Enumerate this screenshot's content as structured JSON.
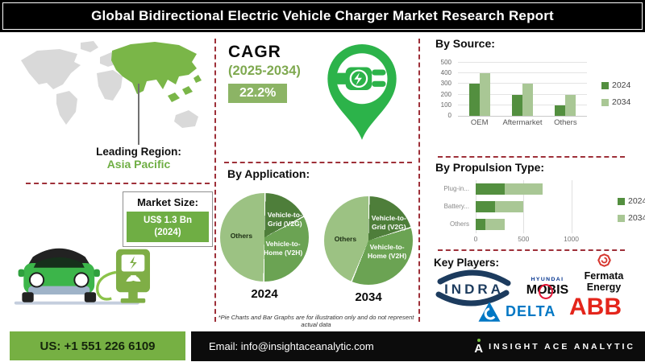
{
  "title": "Global Bidirectional Electric Vehicle Charger Market Research Report",
  "leading_region": {
    "label": "Leading Region:",
    "value": "Asia Pacific"
  },
  "cagr": {
    "label": "CAGR",
    "period": "(2025-2034)",
    "value": "22.2%"
  },
  "market_size": {
    "label": "Market Size:",
    "value": "US$ 1.3 Bn",
    "year": "(2024)"
  },
  "chart_data": [
    {
      "id": "by_source",
      "type": "bar",
      "title": "By Source:",
      "categories": [
        "OEM",
        "Aftermarket",
        "Others"
      ],
      "series": [
        {
          "name": "2024",
          "color": "#538f3f",
          "values": [
            300,
            200,
            100
          ]
        },
        {
          "name": "2034",
          "color": "#a9c795",
          "values": [
            400,
            300,
            200
          ]
        }
      ],
      "ylim": [
        0,
        500
      ],
      "yticks": [
        0,
        100,
        200,
        300,
        400,
        500
      ],
      "grid": true,
      "legend_position": "right"
    },
    {
      "id": "by_application",
      "type": "pie",
      "title": "By Application:",
      "pies": [
        {
          "year": "2024",
          "slices": [
            {
              "name": "Vehicle-to-Grid (V2G)",
              "value": 17,
              "color": "#4e7e3a"
            },
            {
              "name": "Vehicle-to-Home (V2H)",
              "value": 33,
              "color": "#6ba353"
            },
            {
              "name": "Others",
              "value": 50,
              "color": "#9cc283"
            }
          ]
        },
        {
          "year": "2034",
          "slices": [
            {
              "name": "Vehicle-to-Grid (V2G)",
              "value": 20,
              "color": "#4e7e3a"
            },
            {
              "name": "Vehicle-to-Home (V2H)",
              "value": 36,
              "color": "#6ba353"
            },
            {
              "name": "Others",
              "value": 44,
              "color": "#9cc283"
            }
          ]
        }
      ],
      "footnote": "*Pie Charts and Bar Graphs are for illustration only and do not represent actual data"
    },
    {
      "id": "by_propulsion",
      "type": "bar",
      "orientation": "horizontal-stacked",
      "title": "By Propulsion Type:",
      "categories": [
        "Plug-in...",
        "Battery...",
        "Others"
      ],
      "series": [
        {
          "name": "2024",
          "color": "#538f3f",
          "values": [
            300,
            200,
            100
          ]
        },
        {
          "name": "2034",
          "color": "#a9c795",
          "values": [
            400,
            300,
            200
          ]
        }
      ],
      "xlim": [
        0,
        1400
      ],
      "xticks": [
        0,
        500,
        1000
      ],
      "grid": true,
      "legend_position": "right"
    }
  ],
  "key_players": {
    "label": "Key Players:",
    "indra": "INDRA",
    "hyundai": "HYUNDAI",
    "mobis": "MOBIS",
    "fermata_line1": "Fermata",
    "fermata_line2": "Energy",
    "delta": "DELTA",
    "abb": "ABB"
  },
  "footer": {
    "phone": "US: +1 551 226 6109",
    "email": "Email: info@insightaceanalytic.com",
    "brand_mark": "A",
    "brand": "INSIGHT ACE ANALYTIC"
  },
  "colors": {
    "accent_green": "#2cb34a",
    "olive_green": "#7fae46",
    "cagr_box": "#8cb465",
    "footer_green": "#76b043",
    "dashed_divider": "#9e3039",
    "map_region_highlight": "#7ab648",
    "bar_2024": "#538f3f",
    "bar_2034": "#a9c795",
    "indra_navy": "#1c3b5e",
    "hyundai_blue": "#00318d",
    "mobis_ring_red": "#e31837",
    "fermata_red": "#d7372f",
    "delta_blue": "#0077c4",
    "abb_red": "#e4251b"
  }
}
